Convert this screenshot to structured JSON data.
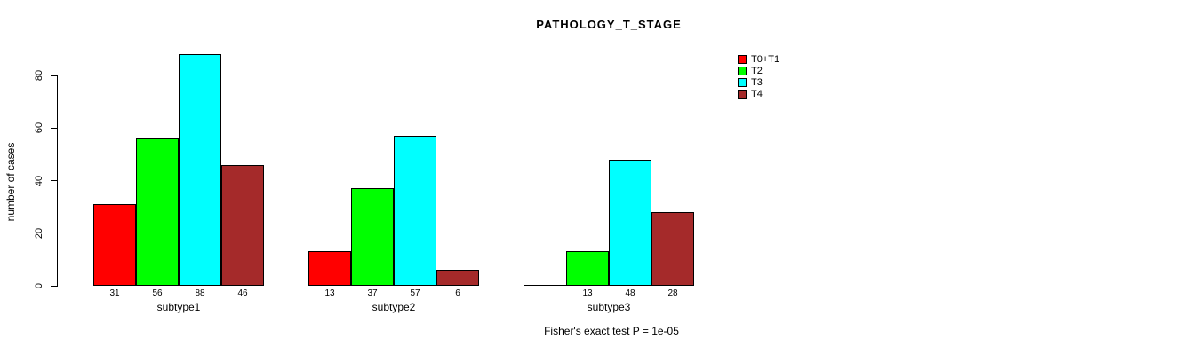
{
  "title": "PATHOLOGY_T_STAGE",
  "y_axis_label": "number of cases",
  "footer": "Fisher's exact test P = 1e-05",
  "chart_data": {
    "type": "bar",
    "title": "PATHOLOGY_T_STAGE",
    "xlabel": "",
    "ylabel": "number of cases",
    "categories": [
      "subtype1",
      "subtype2",
      "subtype3"
    ],
    "series": [
      {
        "name": "T0+T1",
        "color": "#FF0000",
        "values": [
          31,
          13,
          0
        ]
      },
      {
        "name": "T2",
        "color": "#00FF00",
        "values": [
          56,
          37,
          13
        ]
      },
      {
        "name": "T3",
        "color": "#00FFFF",
        "values": [
          88,
          57,
          48
        ]
      },
      {
        "name": "T4",
        "color": "#A52A2A",
        "values": [
          46,
          6,
          28
        ]
      }
    ],
    "bar_labels": [
      [
        "31",
        "56",
        "88",
        "46"
      ],
      [
        "13",
        "37",
        "57",
        "6"
      ],
      [
        "",
        "13",
        "48",
        "28"
      ]
    ],
    "y_ticks": [
      0,
      20,
      40,
      60,
      80
    ],
    "ylim": [
      0,
      88
    ],
    "grid": false,
    "legend_position": "right",
    "annotation": "Fisher's exact test P = 1e-05"
  }
}
